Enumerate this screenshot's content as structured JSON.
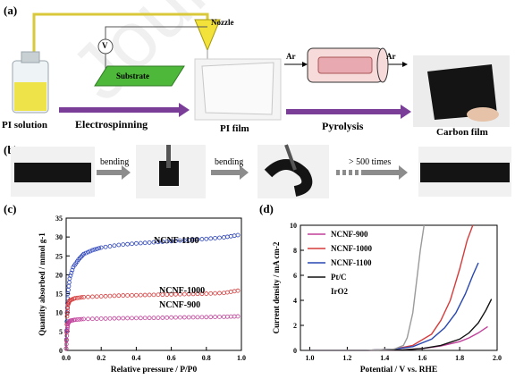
{
  "panel_labels": {
    "a": "(a)",
    "b": "(b)",
    "c": "(c)",
    "d": "(d)"
  },
  "panel_a": {
    "pi_solution": "PI solution",
    "nozzle": "Nozzle",
    "voltage": "V",
    "substrate": "Substrate",
    "electrospinning": "Electrospinning",
    "pi_film": "PI film",
    "ar_in": "Ar",
    "ar_out": "Ar",
    "pyrolysis": "Pyrolysis",
    "carbon_film": "Carbon film"
  },
  "panel_b": {
    "bending_1": "bending",
    "bending_2": "bending",
    "times": "> 500 times"
  },
  "watermark": "Journal Pre-proofs",
  "chart_data": [
    {
      "type": "scatter",
      "panel": "(c)",
      "xlabel": "Relative pressure / P/P0",
      "ylabel": "Quantity absorbed / mmol g-1",
      "xlim": [
        0,
        1.0
      ],
      "ylim": [
        0,
        35
      ],
      "x_ticks": [
        "0.0",
        "0.2",
        "0.4",
        "0.6",
        "0.8",
        "1.0"
      ],
      "y_ticks": [
        "0",
        "5",
        "10",
        "15",
        "20",
        "25",
        "30",
        "35"
      ],
      "series": [
        {
          "name": "NCNF-1100",
          "color": "#2840b8",
          "x": [
            0.0,
            0.005,
            0.01,
            0.02,
            0.04,
            0.07,
            0.1,
            0.15,
            0.2,
            0.3,
            0.4,
            0.5,
            0.6,
            0.7,
            0.8,
            0.9,
            0.98
          ],
          "y": [
            0.5,
            10,
            15,
            19,
            22,
            24,
            25.5,
            26.5,
            27.2,
            27.9,
            28.3,
            28.6,
            28.9,
            29.2,
            29.5,
            29.9,
            30.5
          ]
        },
        {
          "name": "NCNF-1000",
          "color": "#d63a3a",
          "x": [
            0.0,
            0.005,
            0.01,
            0.02,
            0.05,
            0.1,
            0.2,
            0.3,
            0.4,
            0.5,
            0.6,
            0.7,
            0.8,
            0.9,
            0.98
          ],
          "y": [
            0.5,
            9,
            12,
            13.2,
            13.8,
            14.1,
            14.3,
            14.5,
            14.6,
            14.7,
            14.8,
            14.9,
            15.0,
            15.2,
            15.8
          ]
        },
        {
          "name": "NCNF-900",
          "color": "#c0409a",
          "x": [
            0.0,
            0.005,
            0.01,
            0.02,
            0.05,
            0.1,
            0.2,
            0.3,
            0.4,
            0.5,
            0.6,
            0.7,
            0.8,
            0.9,
            0.98
          ],
          "y": [
            0.5,
            5,
            7,
            7.8,
            8.1,
            8.3,
            8.4,
            8.5,
            8.55,
            8.6,
            8.7,
            8.75,
            8.8,
            8.9,
            9.0
          ]
        }
      ]
    },
    {
      "type": "line",
      "panel": "(d)",
      "xlabel": "Potential / V vs. RHE",
      "ylabel": "Current density / mA cm-2",
      "xlim": [
        0.95,
        2.0
      ],
      "ylim": [
        0,
        10
      ],
      "x_ticks": [
        "1.0",
        "1.2",
        "1.4",
        "1.6",
        "1.8",
        "2.0"
      ],
      "y_ticks": [
        "0",
        "2",
        "4",
        "6",
        "8",
        "10"
      ],
      "legend": "top-left",
      "series": [
        {
          "name": "NCNF-900",
          "color": "#c0409a",
          "x": [
            1.0,
            1.3,
            1.5,
            1.6,
            1.7,
            1.8,
            1.85,
            1.9,
            1.95
          ],
          "y": [
            0,
            0,
            0.05,
            0.15,
            0.35,
            0.7,
            1.0,
            1.4,
            1.9
          ]
        },
        {
          "name": "NCNF-1000",
          "color": "#d63a3a",
          "x": [
            1.0,
            1.3,
            1.45,
            1.55,
            1.65,
            1.7,
            1.75,
            1.8,
            1.84,
            1.87
          ],
          "y": [
            0,
            0,
            0.1,
            0.4,
            1.3,
            2.4,
            4.0,
            6.5,
            8.8,
            10
          ]
        },
        {
          "name": "NCNF-1100",
          "color": "#2846b0",
          "x": [
            1.0,
            1.3,
            1.45,
            1.55,
            1.65,
            1.72,
            1.78,
            1.83,
            1.87,
            1.9
          ],
          "y": [
            0,
            0,
            0.1,
            0.3,
            0.9,
            1.8,
            3.0,
            4.5,
            6.0,
            7.0
          ]
        },
        {
          "name": "Pt/C",
          "color": "#111111",
          "x": [
            1.0,
            1.3,
            1.5,
            1.6,
            1.7,
            1.8,
            1.85,
            1.9,
            1.94,
            1.97
          ],
          "y": [
            0,
            0,
            0.05,
            0.15,
            0.4,
            0.9,
            1.4,
            2.2,
            3.2,
            4.1
          ]
        },
        {
          "name": "IrO2",
          "color": "#9a9a9a",
          "x": [
            1.0,
            1.3,
            1.45,
            1.5,
            1.52,
            1.55,
            1.57,
            1.59,
            1.61
          ],
          "y": [
            0,
            0,
            0.1,
            0.4,
            1.0,
            3.0,
            5.5,
            8.0,
            10
          ]
        }
      ]
    }
  ]
}
